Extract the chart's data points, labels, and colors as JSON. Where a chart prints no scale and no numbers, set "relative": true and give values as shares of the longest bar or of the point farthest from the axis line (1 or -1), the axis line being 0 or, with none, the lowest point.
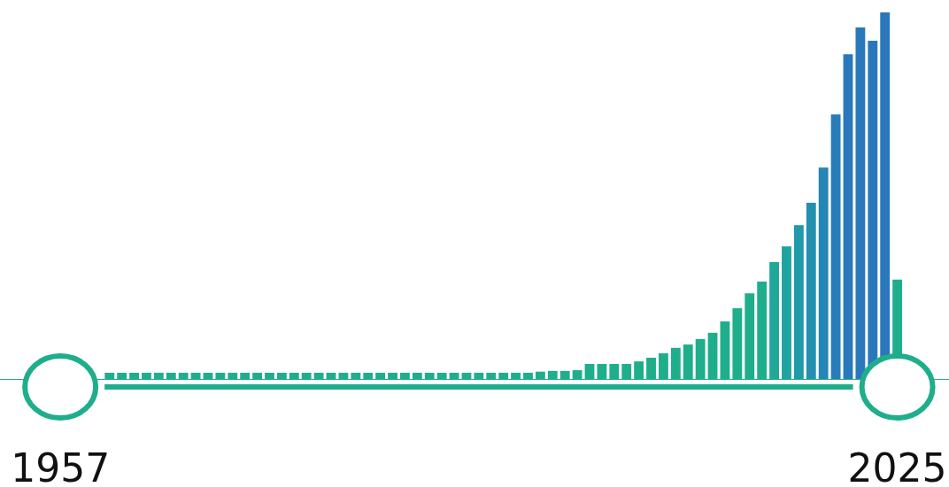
{
  "chart_data": {
    "type": "bar",
    "relative": true,
    "categories": [
      "1957",
      null,
      null,
      null,
      null,
      null,
      null,
      null,
      null,
      null,
      null,
      null,
      null,
      null,
      null,
      null,
      null,
      null,
      null,
      null,
      null,
      null,
      null,
      null,
      null,
      null,
      null,
      null,
      null,
      null,
      null,
      null,
      null,
      null,
      null,
      null,
      null,
      null,
      null,
      null,
      null,
      null,
      null,
      null,
      null,
      null,
      null,
      null,
      null,
      null,
      null,
      null,
      null,
      null,
      null,
      null,
      null,
      null,
      null,
      null,
      null,
      null,
      null,
      null,
      null,
      null,
      null,
      null,
      "2025"
    ],
    "values": [
      null,
      null,
      null,
      null,
      0.017,
      0.017,
      0.017,
      0.017,
      0.017,
      0.017,
      0.017,
      0.017,
      0.017,
      0.017,
      0.017,
      0.017,
      0.017,
      0.017,
      0.017,
      0.017,
      0.017,
      0.017,
      0.017,
      0.017,
      0.017,
      0.017,
      0.017,
      0.017,
      0.017,
      0.017,
      0.017,
      0.017,
      0.017,
      0.017,
      0.017,
      0.017,
      0.017,
      0.017,
      0.017,
      0.02,
      0.022,
      0.022,
      0.024,
      0.041,
      0.041,
      0.041,
      0.041,
      0.048,
      0.058,
      0.07,
      0.085,
      0.094,
      0.109,
      0.126,
      0.157,
      0.193,
      0.234,
      0.266,
      0.319,
      0.362,
      0.42,
      0.481,
      0.577,
      0.722,
      0.886,
      0.959,
      0.923,
      1,
      0.271
    ],
    "colors": [
      "#1fae8c",
      "#1fae8c",
      "#1fae8c",
      "#1fae8c",
      "#1fae8c",
      "#1fae8c",
      "#1fae8c",
      "#1fae8c",
      "#1fae8c",
      "#1fae8c",
      "#1fae8c",
      "#1fae8c",
      "#1fae8c",
      "#1fae8c",
      "#1fae8c",
      "#1fae8c",
      "#1fae8c",
      "#1fae8c",
      "#1fae8c",
      "#1fae8c",
      "#1fae8c",
      "#1fae8c",
      "#1fae8c",
      "#1fae8c",
      "#1fae8c",
      "#1fae8c",
      "#1fae8c",
      "#1fae8c",
      "#1fae8c",
      "#1fae8c",
      "#1fae8c",
      "#1fae8c",
      "#1fae8c",
      "#1fae8c",
      "#1fae8c",
      "#1fae8c",
      "#1fae8c",
      "#1fae8c",
      "#1fae8c",
      "#1fae8c",
      "#1fae8c",
      "#1fae8c",
      "#1fae8c",
      "#1fae8c",
      "#1fae8c",
      "#1fae8c",
      "#1fae8c",
      "#1fae8c",
      "#1fae8c",
      "#1fae8c",
      "#1fae8c",
      "#1fae8c",
      "#1fae8c",
      "#1fae8c",
      "#1fae8c",
      "#1fae8c",
      "#1fae8c",
      "#1fae8c",
      "#1fa898",
      "#1ea3a0",
      "#1f9aa8",
      "#2290ae",
      "#2585b4",
      "#287cb9",
      "#2a78bc",
      "#2a78bc",
      "#2a78bc",
      "#2a78bc",
      "#1fae8c"
    ],
    "grid": false,
    "legend": false
  }
}
